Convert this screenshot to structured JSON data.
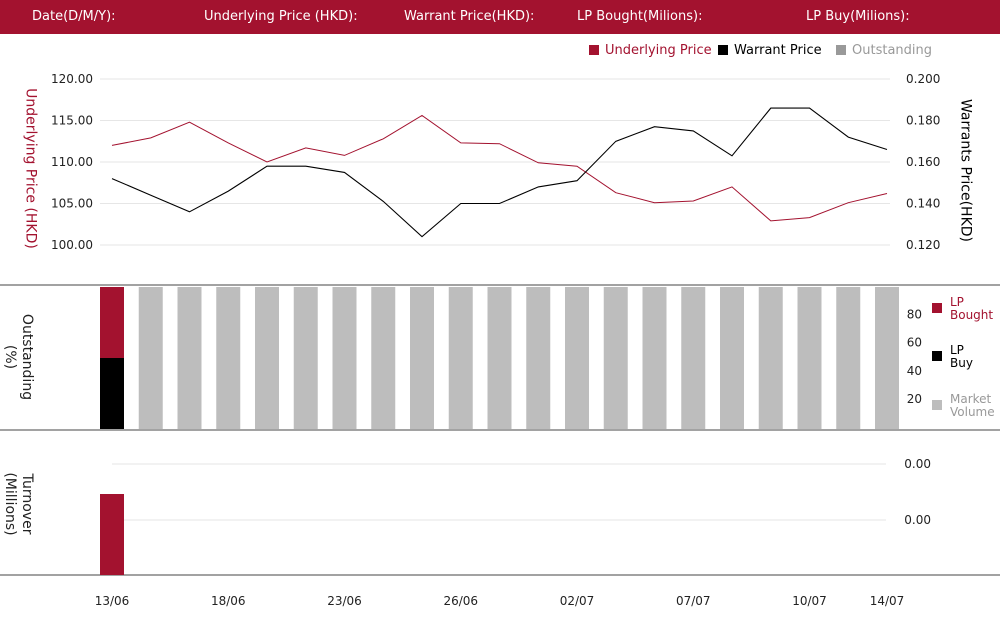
{
  "header": {
    "date_label": "Date(D/M/Y):",
    "underlying_label": "Underlying Price (HKD):",
    "warrant_label": "Warrant  Price(HKD):",
    "lp_bought_label": "LP Bought(Milions):",
    "lp_buy_label": "LP Buy(Milions):"
  },
  "legend": {
    "underlying": "Underlying Price",
    "warrant": "Warrant  Price",
    "outstanding": "Outstanding"
  },
  "axes": {
    "price_left_title": "Underlying Price (HKD)",
    "price_right_title": "Warrants  Price(HKD)",
    "outstanding_title": "Outstanding (%)",
    "turnover_title": "Turnover (Millions)"
  },
  "colors": {
    "brand": "#a3122f",
    "warrant": "#000000",
    "outstanding": "#bdbdbd"
  },
  "chart_data": [
    {
      "type": "line",
      "x_ticks": [
        "13/06",
        "18/06",
        "23/06",
        "26/06",
        "02/07",
        "07/07",
        "10/07",
        "14/07"
      ],
      "series": [
        {
          "name": "Underlying Price",
          "axis": "left",
          "values": [
            112.0,
            112.9,
            114.8,
            112.3,
            110.0,
            111.7,
            110.8,
            112.8,
            115.6,
            112.3,
            112.2,
            109.9,
            109.5,
            106.3,
            105.1,
            105.3,
            107.0,
            102.9,
            103.3,
            105.1,
            106.2
          ]
        },
        {
          "name": "Warrant  Price",
          "axis": "right",
          "values": [
            0.152,
            0.144,
            0.136,
            0.146,
            0.158,
            0.158,
            0.155,
            0.141,
            0.124,
            0.14,
            0.14,
            0.148,
            0.151,
            0.17,
            0.177,
            0.175,
            0.163,
            0.186,
            0.186,
            0.172,
            0.166
          ]
        }
      ],
      "ylim_left": [
        100,
        120
      ],
      "y_ticks_left": [
        "100.00",
        "105.00",
        "110.00",
        "115.00",
        "120.00"
      ],
      "ylim_right": [
        0.12,
        0.2
      ],
      "y_ticks_right": [
        "0.120",
        "0.140",
        "0.160",
        "0.180",
        "0.200"
      ],
      "grid": true
    },
    {
      "type": "bar",
      "stacked": true,
      "series": [
        {
          "name": "LP Bought",
          "values": [
            50,
            0,
            0,
            0,
            0,
            0,
            0,
            0,
            0,
            0,
            0,
            0,
            0,
            0,
            0,
            0,
            0,
            0,
            0,
            0,
            0
          ]
        },
        {
          "name": "LP Buy",
          "values": [
            50,
            0,
            0,
            0,
            0,
            0,
            0,
            0,
            0,
            0,
            0,
            0,
            0,
            0,
            0,
            0,
            0,
            0,
            0,
            0,
            0
          ]
        },
        {
          "name": "Market Volume",
          "values": [
            0,
            100,
            100,
            100,
            100,
            100,
            100,
            100,
            100,
            100,
            100,
            100,
            100,
            100,
            100,
            100,
            100,
            100,
            100,
            100,
            100
          ]
        }
      ],
      "y_ticks": [
        "20",
        "40",
        "60",
        "80"
      ],
      "ylim": [
        0,
        100
      ]
    },
    {
      "type": "bar",
      "series": [
        {
          "name": "Turnover",
          "values": [
            1,
            0,
            0,
            0,
            0,
            0,
            0,
            0,
            0,
            0,
            0,
            0,
            0,
            0,
            0,
            0,
            0,
            0,
            0,
            0,
            0
          ]
        }
      ],
      "y_ticks": [
        "0.00",
        "0.00"
      ]
    }
  ],
  "right_legend": {
    "lp_bought": "LP Bought",
    "lp_buy": "LP Buy",
    "market_volume": "Market Volume"
  }
}
